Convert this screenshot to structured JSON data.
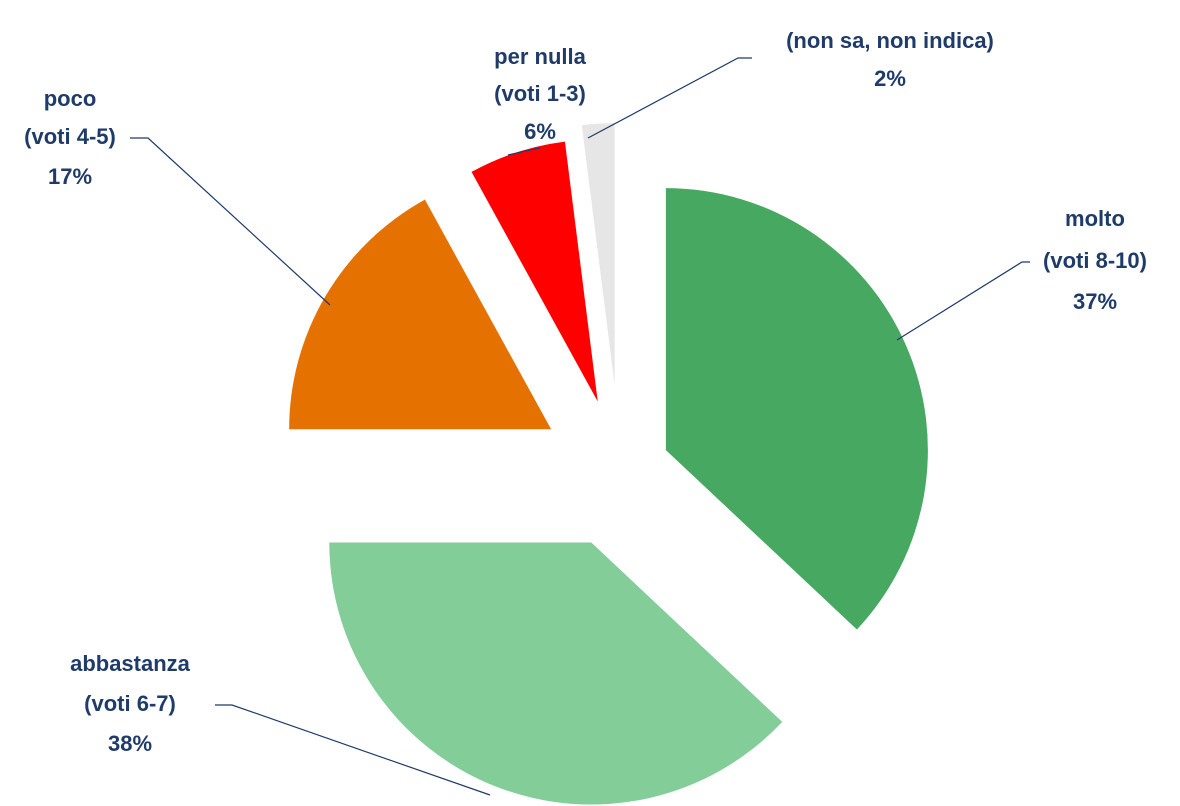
{
  "chart_data": {
    "type": "pie",
    "categories": [
      [
        "molto",
        "(voti 8-10)"
      ],
      [
        "abbastanza",
        "(voti 6-7)"
      ],
      [
        "poco",
        "(voti 4-5)"
      ],
      [
        "per nulla",
        "(voti 1-3)"
      ],
      [
        "(non sa, non indica)"
      ]
    ],
    "values": [
      37,
      38,
      17,
      6,
      2
    ],
    "value_labels": [
      "37%",
      "38%",
      "17%",
      "6%",
      "2%"
    ],
    "colors": [
      "#47a862",
      "#82cd98",
      "#e57200",
      "#ff0000",
      "#e6e6e6"
    ]
  }
}
